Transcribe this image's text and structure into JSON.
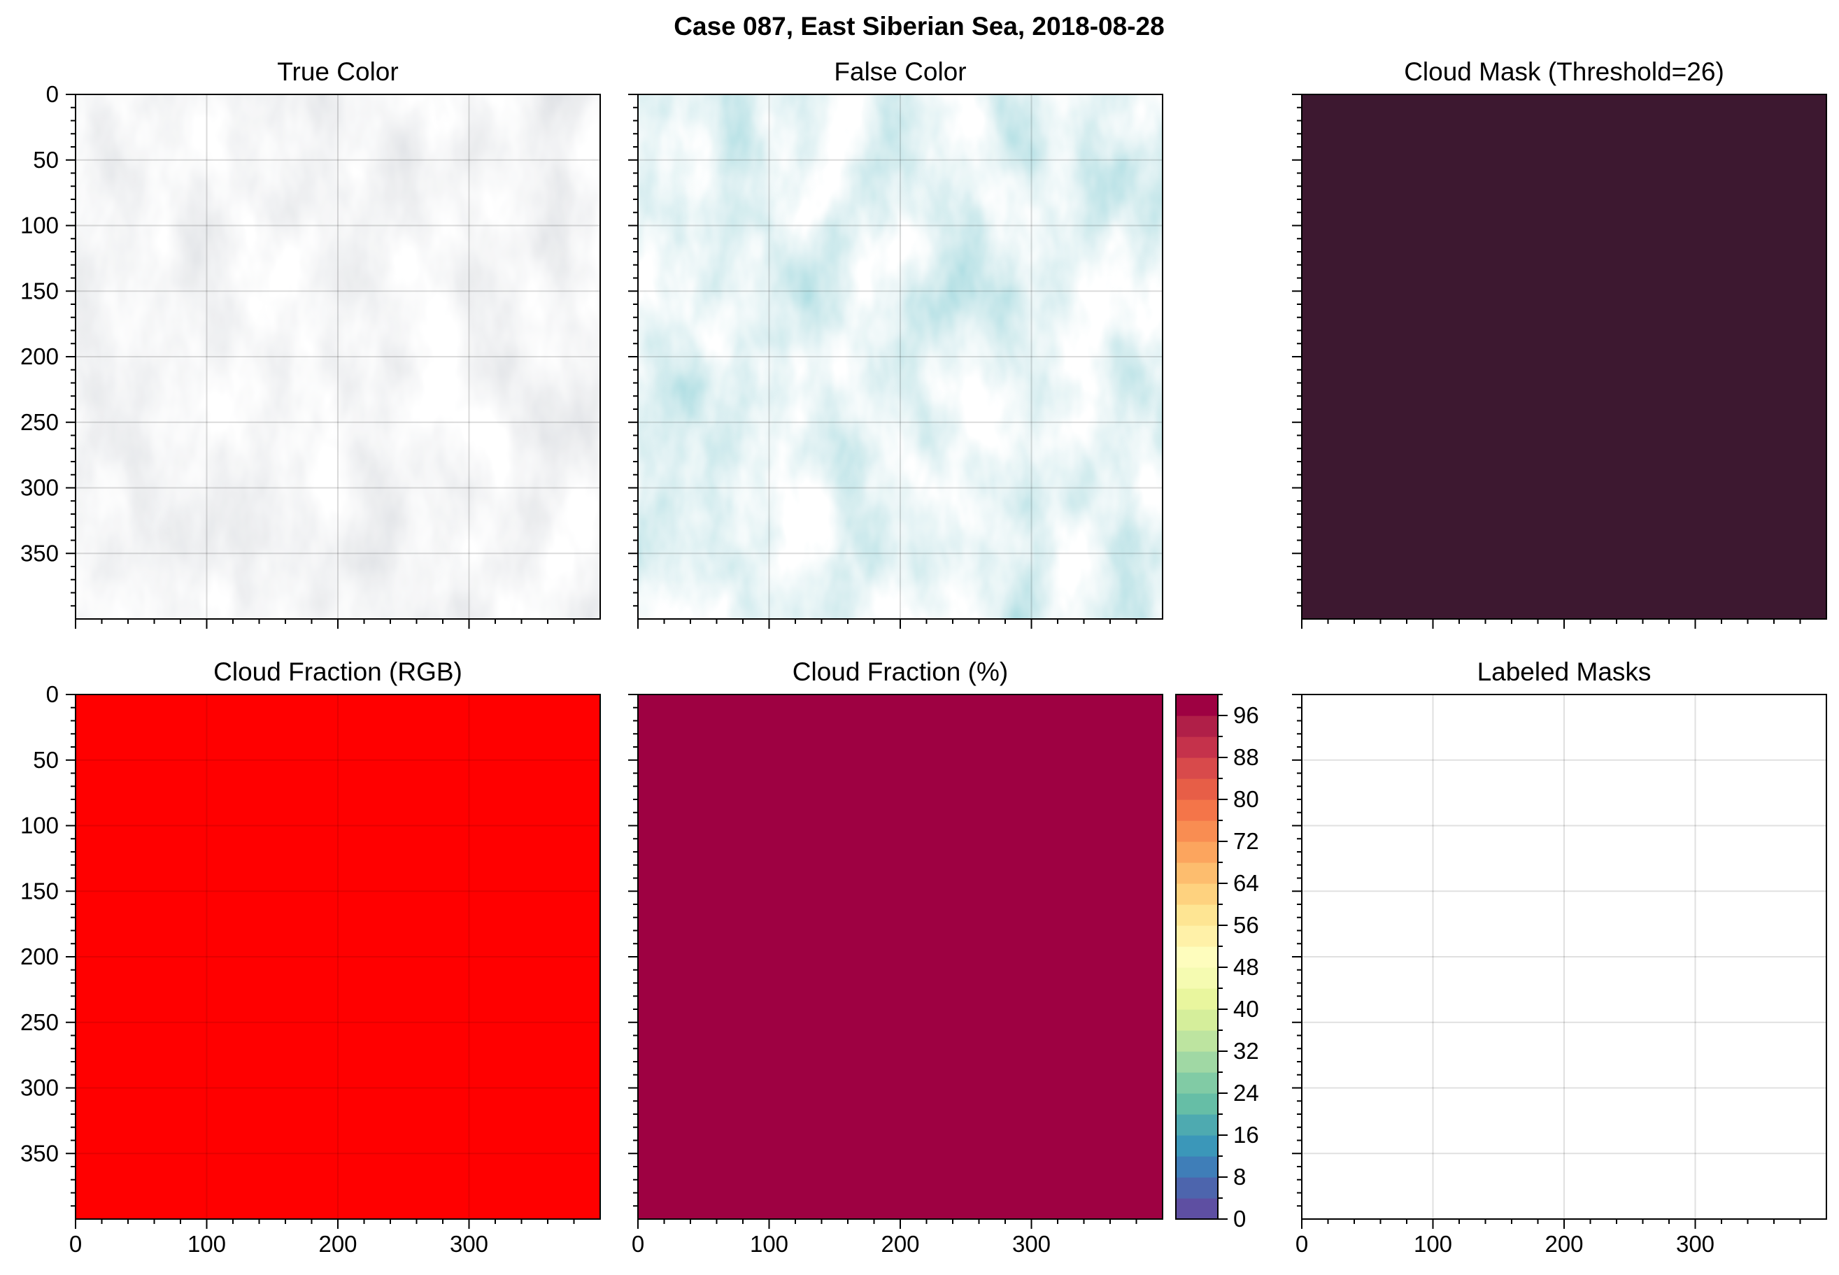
{
  "figure": {
    "title": "Case 087, East Siberian Sea, 2018-08-28"
  },
  "chart_data": [
    {
      "type": "image",
      "name": "true-color",
      "title": "True Color",
      "xlim": [
        0,
        400
      ],
      "ylim": [
        400,
        0
      ],
      "y_ticks": [
        0,
        50,
        100,
        150,
        200,
        250,
        300,
        350
      ],
      "x_ticks_labeled": false,
      "grid": true,
      "content": "satellite true-color imagery, mostly light grey cloud cover"
    },
    {
      "type": "image",
      "name": "false-color",
      "title": "False Color",
      "xlim": [
        0,
        400
      ],
      "ylim": [
        400,
        0
      ],
      "x_ticks_labeled": false,
      "y_ticks_labeled": false,
      "grid": true,
      "content": "false-color imagery, cyan cloud cover"
    },
    {
      "type": "heatmap",
      "name": "cloud-mask",
      "title": "Cloud Mask (Threshold=26)",
      "xlim": [
        0,
        400
      ],
      "ylim": [
        400,
        0
      ],
      "x_ticks_labeled": false,
      "y_ticks_labeled": false,
      "fill_color": "#3d1830"
    },
    {
      "type": "heatmap",
      "name": "cloud-fraction-rgb",
      "title": "Cloud Fraction (RGB)",
      "xlim": [
        0,
        400
      ],
      "ylim": [
        400,
        0
      ],
      "x_ticks": [
        0,
        100,
        200,
        300
      ],
      "y_ticks": [
        0,
        50,
        100,
        150,
        200,
        250,
        300,
        350
      ],
      "grid": true,
      "fill_color": "#ff0000"
    },
    {
      "type": "heatmap",
      "name": "cloud-fraction-pct",
      "title": "Cloud Fraction (%)",
      "xlim": [
        0,
        400
      ],
      "ylim": [
        400,
        0
      ],
      "x_ticks": [
        0,
        100,
        200,
        300
      ],
      "y_ticks_labeled": false,
      "fill_color": "#9e0142",
      "value": 100,
      "colorbar": {
        "min": 0,
        "max": 100,
        "step": 4,
        "tick_labels": [
          0,
          8,
          16,
          24,
          32,
          40,
          48,
          56,
          64,
          72,
          80,
          88,
          96
        ],
        "colors": [
          "#5e4fa2",
          "#4d65ad",
          "#3f7eb8",
          "#3b97b9",
          "#4eaab0",
          "#66bea6",
          "#81cba5",
          "#a0d8a4",
          "#bde4a0",
          "#d5ee9b",
          "#e9f69e",
          "#f5fbb1",
          "#fefdbd",
          "#fff1a8",
          "#fee593",
          "#fed27f",
          "#fdbd6e",
          "#fca55e",
          "#f98d52",
          "#f47549",
          "#e75e47",
          "#d84a4b",
          "#c5324b",
          "#b01f48",
          "#9e0142"
        ]
      }
    },
    {
      "type": "heatmap",
      "name": "labeled-masks",
      "title": "Labeled Masks",
      "xlim": [
        0,
        400
      ],
      "ylim": [
        400,
        0
      ],
      "x_ticks": [
        0,
        100,
        200,
        300
      ],
      "y_ticks_labeled": false,
      "grid": true,
      "fill_color": "#ffffff"
    }
  ]
}
